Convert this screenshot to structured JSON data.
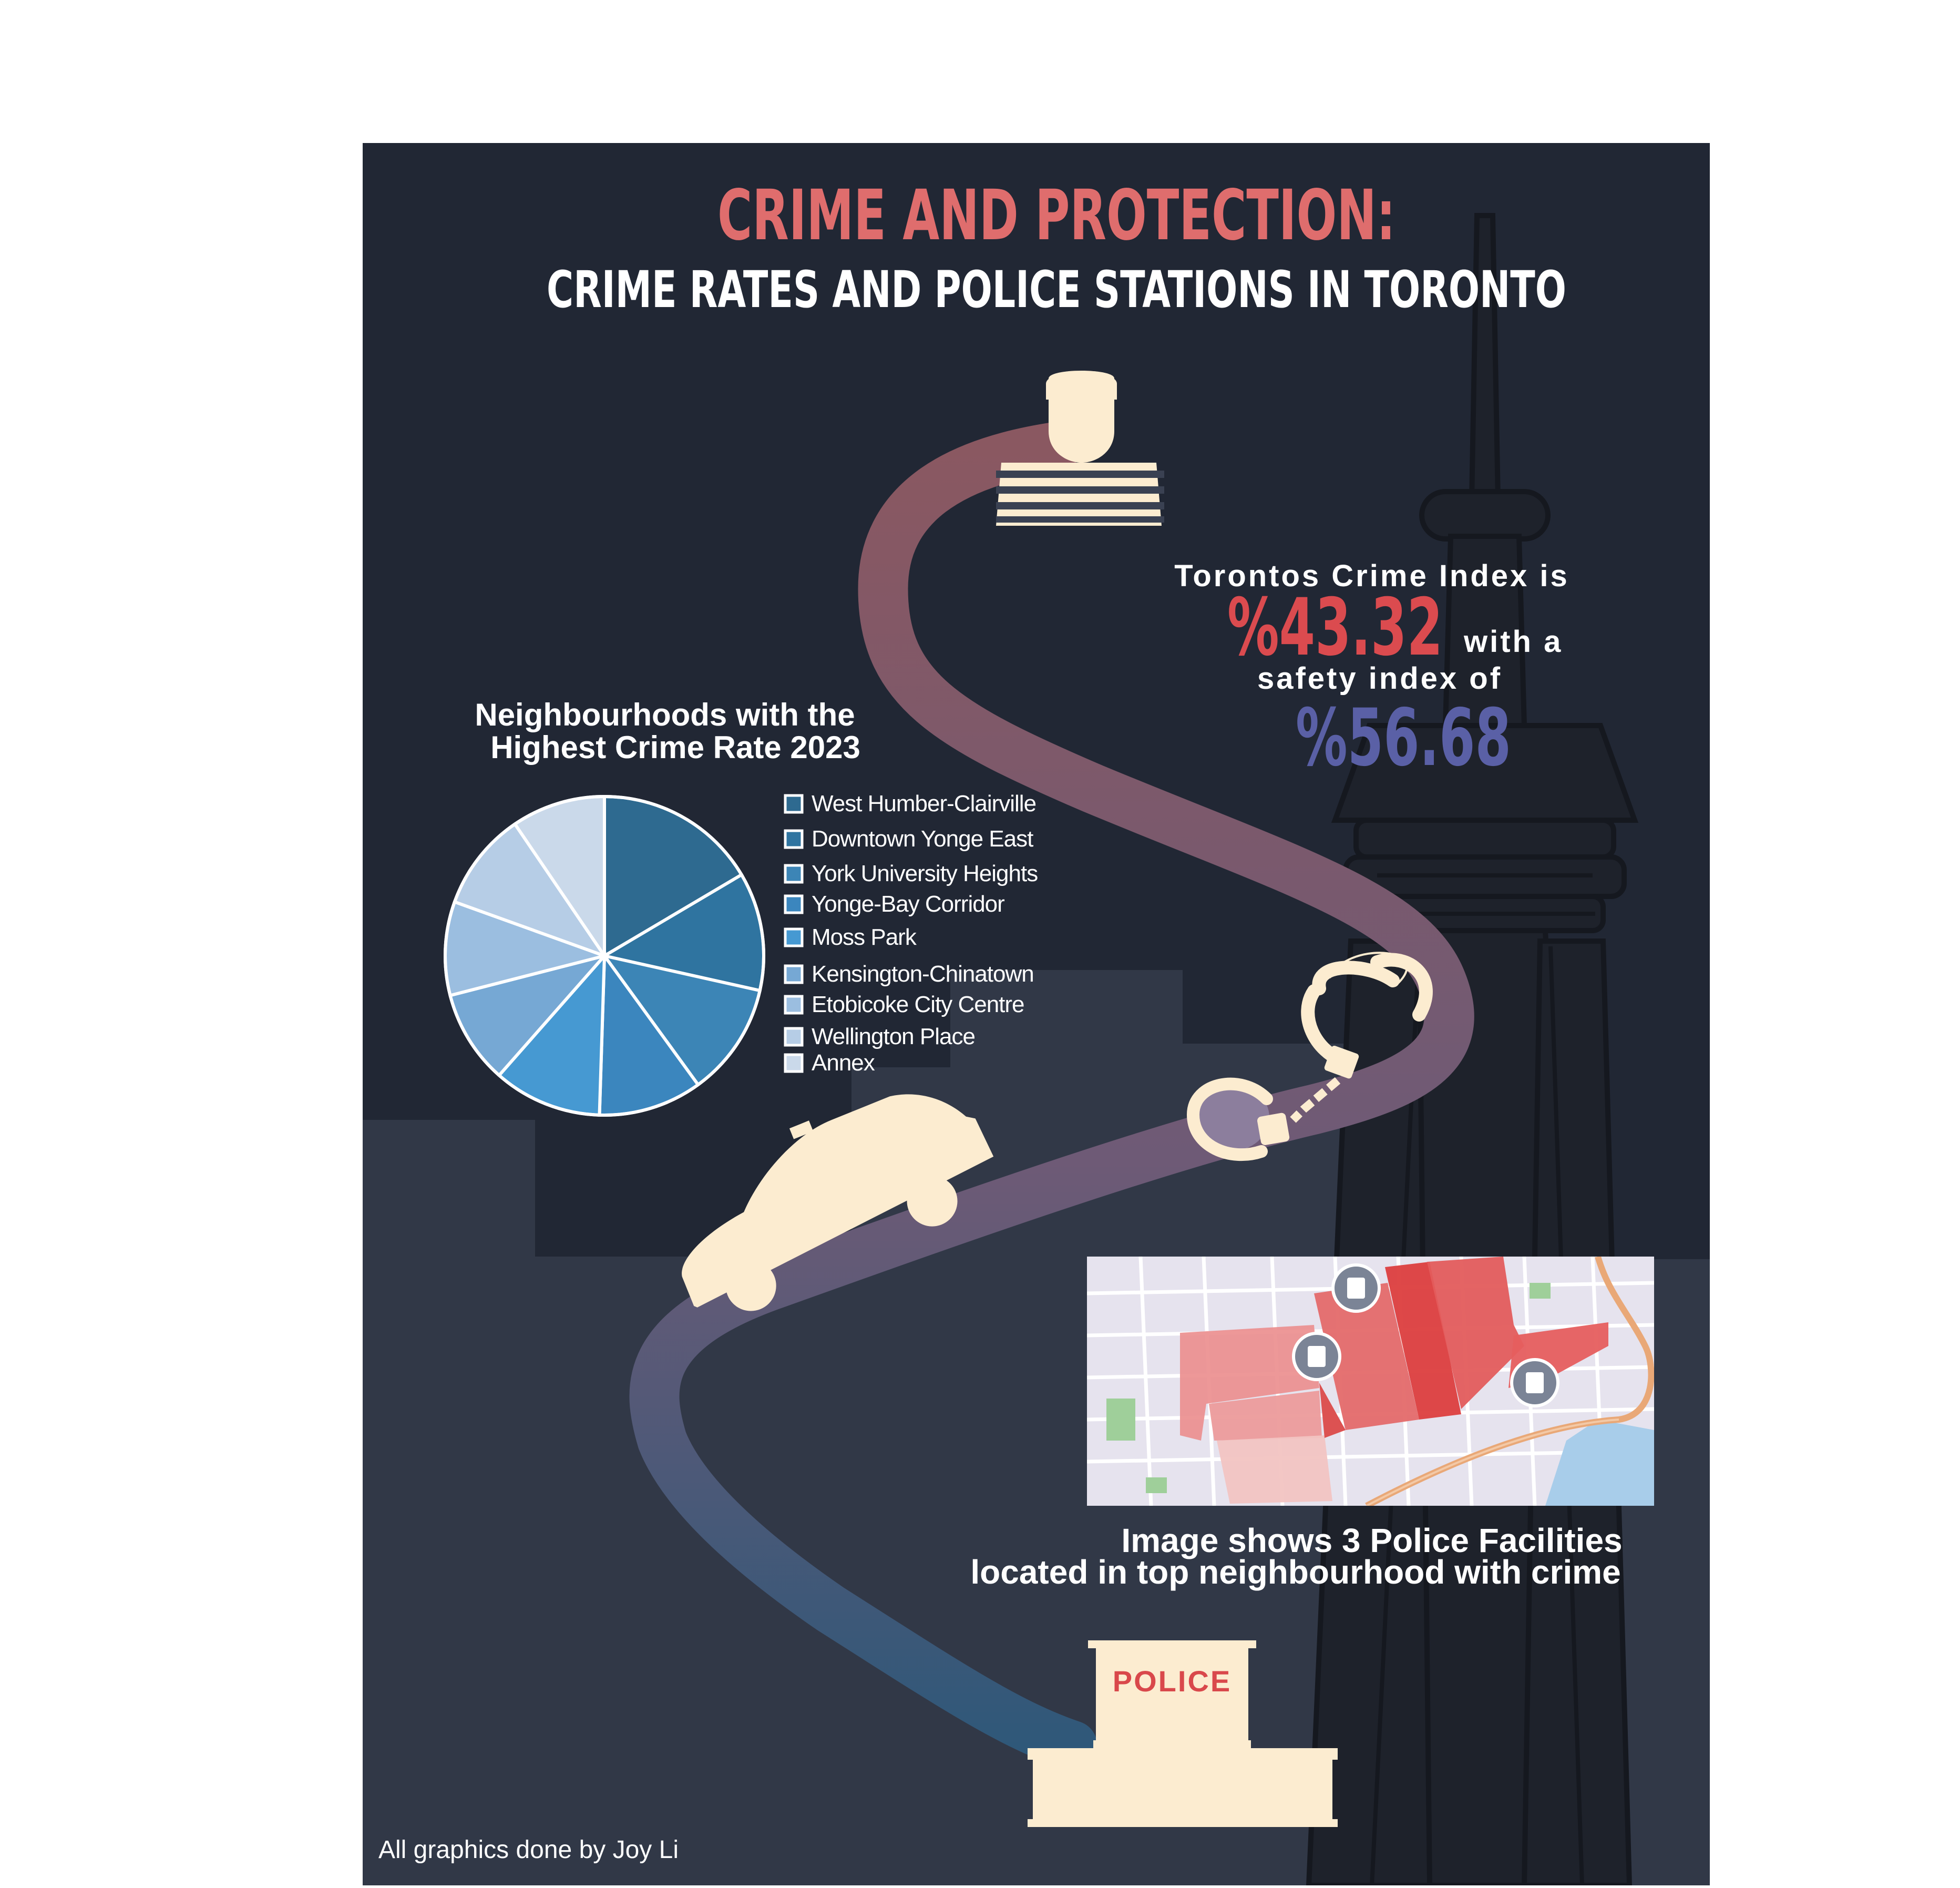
{
  "header": {
    "title": "CRIME AND PROTECTION:",
    "subtitle": "CRIME RATES AND POLICE STATIONS IN TORONTO"
  },
  "stats": {
    "line1": "Torontos Crime Index is",
    "crime_index": "%43.32",
    "line2": "with a",
    "line3": "safety index of",
    "safety_index": "%56.68",
    "crime_color": "#db4b4f",
    "safety_color": "#5a60a6"
  },
  "chart_data": {
    "type": "pie",
    "title_line1": "Neighbourhoods with the",
    "title_line2": "Highest Crime Rate 2023",
    "legend_position": "right",
    "categories": [
      "West Humber-Clairville",
      "Downtown Yonge East",
      "York University Heights",
      "Yonge-Bay Corridor",
      "Moss Park",
      "Kensington-Chinatown",
      "Etobicoke City Centre",
      "Wellington Place",
      "Annex"
    ],
    "values": [
      16.5,
      12,
      11.5,
      10.5,
      11,
      9.5,
      9.5,
      10,
      9.5
    ],
    "colors": [
      "#2e6a90",
      "#2f74a0",
      "#3c85b6",
      "#3b86be",
      "#4699d2",
      "#76a8d4",
      "#9bbee0",
      "#b6cde6",
      "#cad9ea"
    ]
  },
  "map": {
    "caption_line1": "Image shows 3 Police Facilities",
    "caption_line2": "located in top neighbourhood with crime",
    "police_facility_count": 3
  },
  "police_building": {
    "label": "POLICE"
  },
  "credit": "All graphics done by Joy Li",
  "palette": {
    "background": "#212734",
    "skyline": "#313847",
    "cream": "#fcecd0",
    "path_top": "#8a5861",
    "path_bottom": "#355778",
    "tower": "#1e222b"
  }
}
